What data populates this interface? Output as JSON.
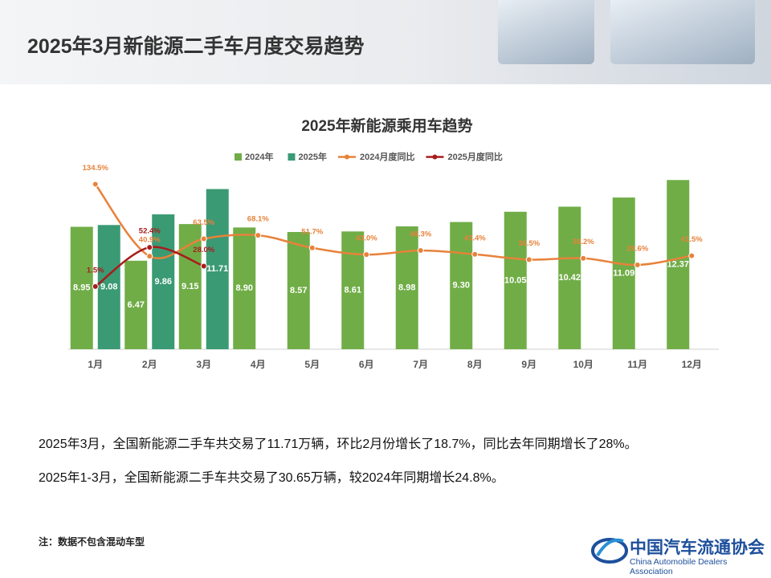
{
  "header": {
    "title": "2025年3月新能源二手车月度交易趋势"
  },
  "chart_data": {
    "type": "bar-line",
    "title": "2025年新能源乘用车趋势",
    "categories": [
      "1月",
      "2月",
      "3月",
      "4月",
      "5月",
      "6月",
      "7月",
      "8月",
      "9月",
      "10月",
      "11月",
      "12月"
    ],
    "ylim": [
      0,
      13.5
    ],
    "y2lim": [
      -80,
      160
    ],
    "legend": "top",
    "series": [
      {
        "name": "2024年",
        "type": "bar",
        "color": "#70ad47",
        "values": [
          8.95,
          6.47,
          9.15,
          8.9,
          8.57,
          8.61,
          8.98,
          9.3,
          10.05,
          10.42,
          11.09,
          12.37
        ],
        "value_labels": [
          "8.95",
          "6.47",
          "9.15",
          "8.90",
          "8.57",
          "8.61",
          "8.98",
          "9.30",
          "10.05",
          "10.42",
          "11.09",
          "12.37"
        ]
      },
      {
        "name": "2025年",
        "type": "bar",
        "color": "#3a9a74",
        "values": [
          9.08,
          9.86,
          11.71,
          null,
          null,
          null,
          null,
          null,
          null,
          null,
          null,
          null
        ],
        "value_labels": [
          "9.08",
          "9.86",
          "11.71",
          null,
          null,
          null,
          null,
          null,
          null,
          null,
          null,
          null
        ]
      },
      {
        "name": "2024月度同比",
        "type": "line",
        "axis": "y2",
        "color": "#e8823a",
        "values": [
          134.5,
          40.9,
          63.5,
          68.1,
          51.7,
          43.0,
          48.3,
          43.4,
          36.5,
          38.2,
          29.6,
          41.5
        ],
        "value_labels": [
          "134.5%",
          "40.9%",
          "63.5%",
          "68.1%",
          "51.7%",
          "43.0%",
          "48.3%",
          "43.4%",
          "36.5%",
          "38.2%",
          "29.6%",
          "41.5%"
        ]
      },
      {
        "name": "2025月度同比",
        "type": "line",
        "axis": "y2",
        "color": "#a81c1c",
        "values": [
          1.5,
          52.4,
          28.0,
          null,
          null,
          null,
          null,
          null,
          null,
          null,
          null,
          null
        ],
        "value_labels": [
          "1.5%",
          "52.4%",
          "28.0%",
          null,
          null,
          null,
          null,
          null,
          null,
          null,
          null,
          null
        ]
      }
    ]
  },
  "paragraphs": [
    "2025年3月，全国新能源二手车共交易了11.71万辆，环比2月份增长了18.7%，同比去年同期增长了28%。",
    "2025年1-3月，全国新能源二手车共交易了30.65万辆，较2024年同期增长24.8%。"
  ],
  "note": "注：数据不包含混动车型",
  "logo": {
    "name": "中国汽车流通协会",
    "english": "China Automobile Dealers Association"
  }
}
